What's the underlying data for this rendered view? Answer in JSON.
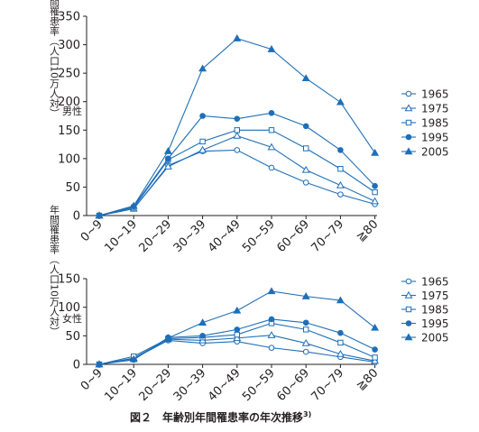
{
  "caption": {
    "main": "図２　年齢別年間罹患率の年次推移",
    "ref": "3)"
  },
  "chart_data": [
    {
      "type": "line",
      "panel_label": "男性",
      "ylabel": "年間罹患率（人口10万人対）",
      "ylim": [
        0,
        350
      ],
      "yticks": [
        0,
        50,
        100,
        150,
        200,
        250,
        300,
        350
      ],
      "categories": [
        "0~9",
        "10~19",
        "20~29",
        "30~39",
        "40~49",
        "50~59",
        "60~69",
        "70~79",
        "≧80"
      ],
      "grid": false,
      "legend": "right",
      "series": [
        {
          "name": "1965",
          "marker": "circle-open",
          "values": [
            0,
            12,
            88,
            113,
            115,
            84,
            58,
            37,
            20
          ]
        },
        {
          "name": "1975",
          "marker": "triangle-open",
          "values": [
            0,
            12,
            86,
            115,
            140,
            120,
            80,
            53,
            25
          ]
        },
        {
          "name": "1985",
          "marker": "square-open",
          "values": [
            0,
            14,
            98,
            130,
            150,
            150,
            118,
            82,
            41
          ]
        },
        {
          "name": "1995",
          "marker": "circle-filled",
          "values": [
            0,
            16,
            100,
            175,
            170,
            180,
            157,
            115,
            52
          ]
        },
        {
          "name": "2005",
          "marker": "triangle-filled",
          "values": [
            0,
            17,
            113,
            258,
            311,
            292,
            241,
            199,
            110
          ]
        }
      ]
    },
    {
      "type": "line",
      "panel_label": "女性",
      "ylabel": "年間罹患率（人口10万人対）",
      "ylim": [
        0,
        150
      ],
      "yticks": [
        0,
        50,
        100,
        150
      ],
      "categories": [
        "0~9",
        "10~19",
        "20~29",
        "30~39",
        "40~49",
        "50~59",
        "60~69",
        "70~79",
        "≧80"
      ],
      "grid": false,
      "legend": "right",
      "series": [
        {
          "name": "1965",
          "marker": "circle-open",
          "values": [
            0,
            10,
            42,
            37,
            40,
            29,
            22,
            13,
            4
          ]
        },
        {
          "name": "1975",
          "marker": "triangle-open",
          "values": [
            0,
            11,
            44,
            42,
            46,
            51,
            37,
            18,
            6
          ]
        },
        {
          "name": "1985",
          "marker": "square-open",
          "values": [
            0,
            14,
            45,
            47,
            52,
            72,
            61,
            38,
            12
          ]
        },
        {
          "name": "1995",
          "marker": "circle-filled",
          "values": [
            0,
            8,
            47,
            50,
            61,
            79,
            73,
            55,
            26
          ]
        },
        {
          "name": "2005",
          "marker": "triangle-filled",
          "values": [
            0,
            9,
            46,
            73,
            94,
            128,
            119,
            112,
            64
          ]
        }
      ]
    }
  ],
  "colors": {
    "series": "#1f6fb8",
    "axis": "#231f20"
  }
}
